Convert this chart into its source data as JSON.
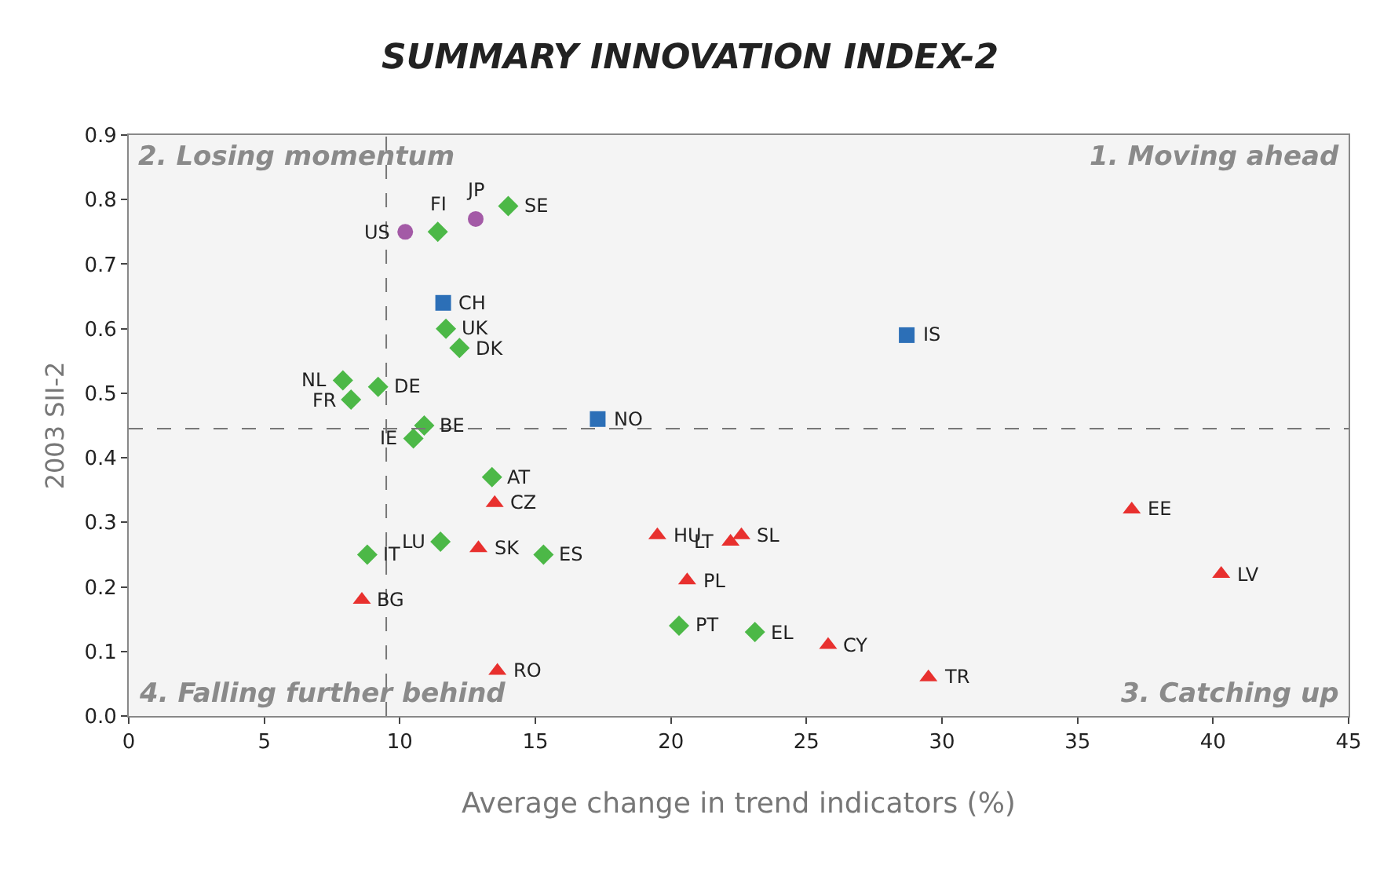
{
  "chart_data": {
    "type": "scatter",
    "title": "SUMMARY INNOVATION INDEX-2",
    "xlabel": "Average change in trend indicators (%)",
    "ylabel": "2003 SII-2",
    "xlim": [
      0,
      45
    ],
    "xticks": [
      0,
      5,
      10,
      15,
      20,
      25,
      30,
      35,
      40,
      45
    ],
    "ylim": [
      0,
      0.9
    ],
    "yticks": [
      {
        "value": 0,
        "label": "0.0"
      },
      0.1,
      0.2,
      0.3,
      0.4,
      0.5,
      0.6,
      0.7,
      0.8,
      0.9
    ],
    "grid": false,
    "series": [
      {
        "color": "#a35aa6",
        "marker": "circle",
        "x": [
          10.2,
          12.8
        ],
        "values": [
          0.75,
          0.77
        ]
      },
      {
        "color": "#2c6fb7",
        "marker": "square",
        "x": [
          11.6,
          28.7,
          17.3
        ],
        "values": [
          0.64,
          0.59,
          0.46
        ]
      },
      {
        "color": "#4cb847",
        "marker": "diamond",
        "x": [
          14.0,
          11.4,
          11.7,
          12.2,
          7.9,
          9.2,
          8.2,
          10.9,
          10.5,
          13.4,
          11.5,
          15.3,
          8.8,
          20.3,
          23.1
        ],
        "values": [
          0.79,
          0.75,
          0.6,
          0.57,
          0.52,
          0.51,
          0.49,
          0.45,
          0.43,
          0.37,
          0.27,
          0.25,
          0.25,
          0.14,
          0.13
        ]
      },
      {
        "color": "#e8302e",
        "marker": "triangle",
        "x": [
          13.5,
          12.9,
          8.6,
          19.5,
          22.6,
          22.2,
          20.6,
          25.8,
          29.5,
          13.6,
          37.0,
          40.3
        ],
        "values": [
          0.33,
          0.26,
          0.18,
          0.28,
          0.28,
          0.27,
          0.21,
          0.11,
          0.06,
          0.07,
          0.32,
          0.22
        ]
      }
    ],
    "ref_lines": [
      {
        "axis": "x",
        "value": 9.5,
        "color": "#777777",
        "line_style": "dashed"
      },
      {
        "axis": "y",
        "value": 0.445,
        "color": "#777777",
        "line_style": "dashed"
      }
    ],
    "annotations": [
      "2. Losing momentum",
      "1. Moving ahead",
      "4. Falling further behind",
      "3. Catching up",
      {
        "text": "US",
        "x": 10.2,
        "y": 0.75
      },
      {
        "text": "JP",
        "x": 12.8,
        "y": 0.77
      },
      {
        "text": "SE",
        "x": 14.0,
        "y": 0.79
      },
      {
        "text": "FI",
        "x": 11.4,
        "y": 0.75
      },
      {
        "text": "CH",
        "x": 11.6,
        "y": 0.64
      },
      {
        "text": "UK",
        "x": 11.7,
        "y": 0.6
      },
      {
        "text": "DK",
        "x": 12.2,
        "y": 0.57
      },
      {
        "text": "IS",
        "x": 28.7,
        "y": 0.59
      },
      {
        "text": "NL",
        "x": 7.9,
        "y": 0.52
      },
      {
        "text": "DE",
        "x": 9.2,
        "y": 0.51
      },
      {
        "text": "FR",
        "x": 8.2,
        "y": 0.49
      },
      {
        "text": "BE",
        "x": 10.9,
        "y": 0.45
      },
      {
        "text": "NO",
        "x": 17.3,
        "y": 0.46
      },
      {
        "text": "IE",
        "x": 10.5,
        "y": 0.43
      },
      {
        "text": "AT",
        "x": 13.4,
        "y": 0.37
      },
      {
        "text": "CZ",
        "x": 13.5,
        "y": 0.33
      },
      {
        "text": "LU",
        "x": 11.5,
        "y": 0.27
      },
      {
        "text": "SK",
        "x": 12.9,
        "y": 0.26
      },
      {
        "text": "ES",
        "x": 15.3,
        "y": 0.25
      },
      {
        "text": "IT",
        "x": 8.8,
        "y": 0.25
      },
      {
        "text": "BG",
        "x": 8.6,
        "y": 0.18
      },
      {
        "text": "HU",
        "x": 19.5,
        "y": 0.28
      },
      {
        "text": "SL",
        "x": 22.6,
        "y": 0.28
      },
      {
        "text": "LT",
        "x": 22.2,
        "y": 0.27
      },
      {
        "text": "PL",
        "x": 20.6,
        "y": 0.21
      },
      {
        "text": "PT",
        "x": 20.3,
        "y": 0.14
      },
      {
        "text": "EL",
        "x": 23.1,
        "y": 0.13
      },
      {
        "text": "CY",
        "x": 25.8,
        "y": 0.11
      },
      {
        "text": "TR",
        "x": 29.5,
        "y": 0.06
      },
      {
        "text": "RO",
        "x": 13.6,
        "y": 0.07
      },
      {
        "text": "EE",
        "x": 37.0,
        "y": 0.32
      },
      {
        "text": "LV",
        "x": 40.3,
        "y": 0.22
      }
    ]
  }
}
